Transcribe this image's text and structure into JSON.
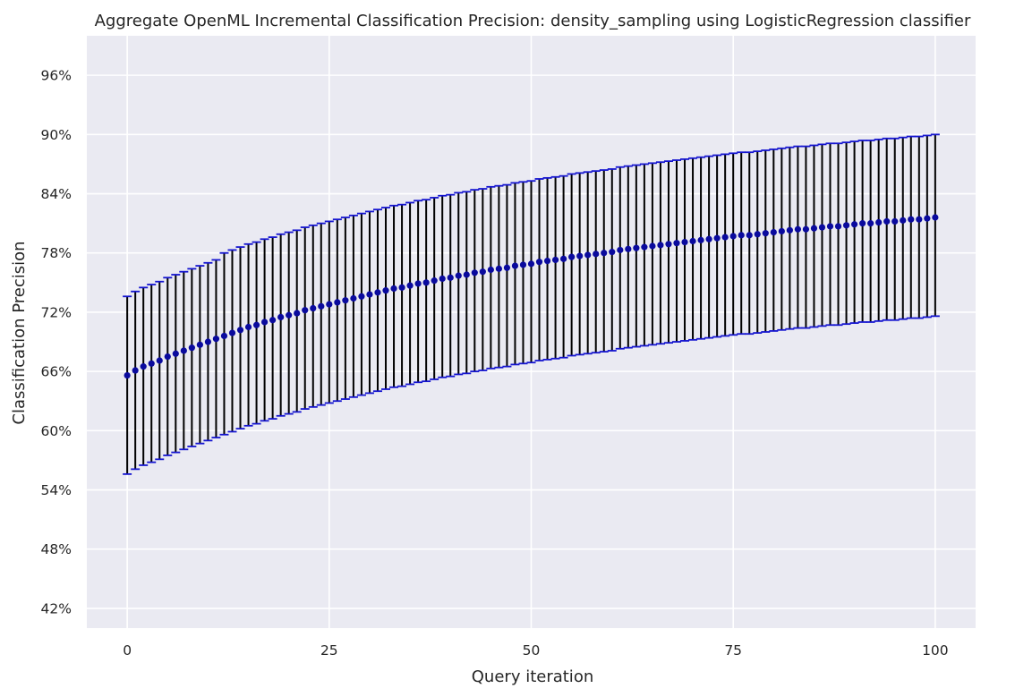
{
  "chart_data": {
    "type": "errorbar",
    "title": "Aggregate OpenML Incremental Classification Precision: density_sampling using LogisticRegression classifier",
    "xlabel": "Query iteration",
    "ylabel": "Classification Precision",
    "xlim": [
      -5,
      105
    ],
    "ylim": [
      40,
      100
    ],
    "x_ticks": [
      0,
      25,
      50,
      75,
      100
    ],
    "y_ticks": [
      42,
      48,
      54,
      60,
      66,
      72,
      78,
      84,
      90,
      96
    ],
    "y_tick_labels": [
      "42%",
      "48%",
      "54%",
      "60%",
      "66%",
      "72%",
      "78%",
      "84%",
      "90%",
      "96%"
    ],
    "grid": true,
    "colors": {
      "background": "#eaeaf2",
      "grid": "#ffffff",
      "marker": "#0a0a9e",
      "errorbar": "#000000",
      "cap": "#1414d0"
    },
    "series": [
      {
        "x_start": 0,
        "x_step": 1,
        "mean": [
          65.6,
          66.1,
          66.5,
          66.8,
          67.1,
          67.5,
          67.8,
          68.1,
          68.4,
          68.7,
          69.0,
          69.3,
          69.6,
          69.9,
          70.2,
          70.5,
          70.7,
          71.0,
          71.2,
          71.5,
          71.7,
          71.9,
          72.2,
          72.4,
          72.6,
          72.8,
          73.0,
          73.2,
          73.4,
          73.6,
          73.8,
          74.0,
          74.2,
          74.4,
          74.5,
          74.7,
          74.9,
          75.0,
          75.2,
          75.4,
          75.5,
          75.7,
          75.8,
          76.0,
          76.1,
          76.3,
          76.4,
          76.5,
          76.7,
          76.8,
          76.9,
          77.1,
          77.2,
          77.3,
          77.4,
          77.6,
          77.7,
          77.8,
          77.9,
          78.0,
          78.1,
          78.3,
          78.4,
          78.5,
          78.6,
          78.7,
          78.8,
          78.9,
          79.0,
          79.1,
          79.2,
          79.3,
          79.4,
          79.5,
          79.6,
          79.7,
          79.8,
          79.8,
          79.9,
          80.0,
          80.1,
          80.2,
          80.3,
          80.4,
          80.4,
          80.5,
          80.6,
          80.7,
          80.7,
          80.8,
          80.9,
          81.0,
          81.0,
          81.1,
          81.2,
          81.2,
          81.3,
          81.4,
          81.4,
          81.5,
          81.6
        ],
        "upper": [
          73.6,
          74.1,
          74.5,
          74.8,
          75.1,
          75.5,
          75.8,
          76.1,
          76.4,
          76.7,
          77.0,
          77.3,
          78.0,
          78.3,
          78.6,
          78.9,
          79.1,
          79.4,
          79.6,
          79.9,
          80.1,
          80.3,
          80.6,
          80.8,
          81.0,
          81.2,
          81.4,
          81.6,
          81.8,
          82.0,
          82.2,
          82.4,
          82.6,
          82.8,
          82.9,
          83.1,
          83.3,
          83.4,
          83.6,
          83.8,
          83.9,
          84.1,
          84.2,
          84.4,
          84.5,
          84.7,
          84.8,
          84.9,
          85.1,
          85.2,
          85.3,
          85.5,
          85.6,
          85.7,
          85.8,
          86.0,
          86.1,
          86.2,
          86.3,
          86.4,
          86.5,
          86.7,
          86.8,
          86.9,
          87.0,
          87.1,
          87.2,
          87.3,
          87.4,
          87.5,
          87.6,
          87.7,
          87.8,
          87.9,
          88.0,
          88.1,
          88.2,
          88.2,
          88.3,
          88.4,
          88.5,
          88.6,
          88.7,
          88.8,
          88.8,
          88.9,
          89.0,
          89.1,
          89.1,
          89.2,
          89.3,
          89.4,
          89.4,
          89.5,
          89.6,
          89.6,
          89.7,
          89.8,
          89.8,
          89.9,
          90.0
        ],
        "lower": [
          55.6,
          56.1,
          56.5,
          56.8,
          57.1,
          57.5,
          57.8,
          58.1,
          58.4,
          58.7,
          59.0,
          59.3,
          59.6,
          59.9,
          60.2,
          60.5,
          60.7,
          61.0,
          61.2,
          61.5,
          61.7,
          61.9,
          62.2,
          62.4,
          62.6,
          62.8,
          63.0,
          63.2,
          63.4,
          63.6,
          63.8,
          64.0,
          64.2,
          64.4,
          64.5,
          64.7,
          64.9,
          65.0,
          65.2,
          65.4,
          65.5,
          65.7,
          65.8,
          66.0,
          66.1,
          66.3,
          66.4,
          66.5,
          66.7,
          66.8,
          66.9,
          67.1,
          67.2,
          67.3,
          67.4,
          67.6,
          67.7,
          67.8,
          67.9,
          68.0,
          68.1,
          68.3,
          68.4,
          68.5,
          68.6,
          68.7,
          68.8,
          68.9,
          69.0,
          69.1,
          69.2,
          69.3,
          69.4,
          69.5,
          69.6,
          69.7,
          69.8,
          69.8,
          69.9,
          70.0,
          70.1,
          70.2,
          70.3,
          70.4,
          70.4,
          70.5,
          70.6,
          70.7,
          70.7,
          70.8,
          70.9,
          71.0,
          71.0,
          71.1,
          71.2,
          71.2,
          71.3,
          71.4,
          71.4,
          71.5,
          71.6
        ]
      }
    ]
  }
}
